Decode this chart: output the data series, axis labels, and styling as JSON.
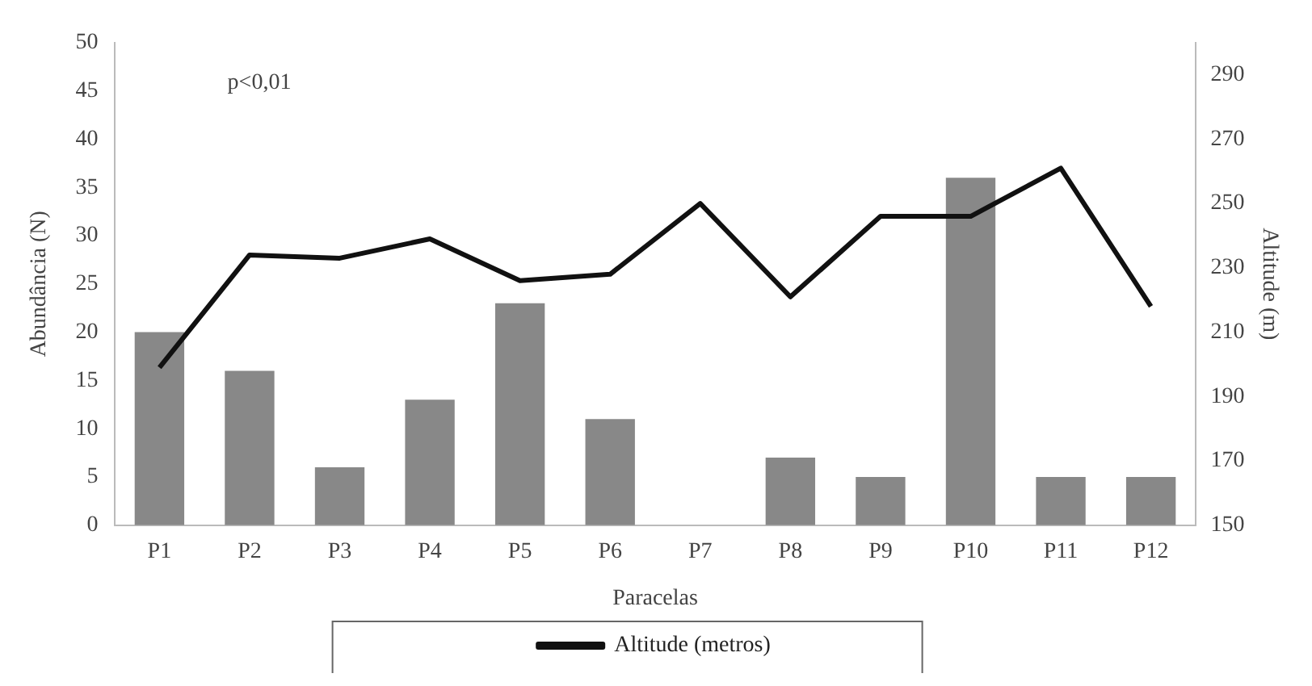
{
  "chart_data": {
    "type": "bar",
    "xlabel": "Paracelas",
    "ylabel": "Abundância (N)",
    "y2label": "Altitude (m)",
    "categories": [
      "P1",
      "P2",
      "P3",
      "P4",
      "P5",
      "P6",
      "P7",
      "P8",
      "P9",
      "P10",
      "P11",
      "P12"
    ],
    "series": [
      {
        "color": "#888888",
        "values": [
          20,
          16,
          6,
          13,
          23,
          11,
          0,
          7,
          5,
          36,
          5,
          5
        ]
      },
      {
        "type": "line",
        "name": "Altitude (metros)",
        "color": "#111111",
        "axis": "y2",
        "values": [
          199,
          234,
          233,
          239,
          226,
          228,
          250,
          221,
          246,
          246,
          261,
          218
        ]
      }
    ],
    "ylim": [
      0,
      50
    ],
    "yticks": [
      0,
      5,
      10,
      15,
      20,
      25,
      30,
      35,
      40,
      45,
      50
    ],
    "y2lim": [
      150,
      300
    ],
    "y2ticks": [
      150,
      170,
      190,
      210,
      230,
      250,
      270,
      290
    ],
    "annotations": [
      "p<0,01"
    ],
    "legend": "bottom",
    "grid": false,
    "marker": "none",
    "line_style": "solid"
  }
}
